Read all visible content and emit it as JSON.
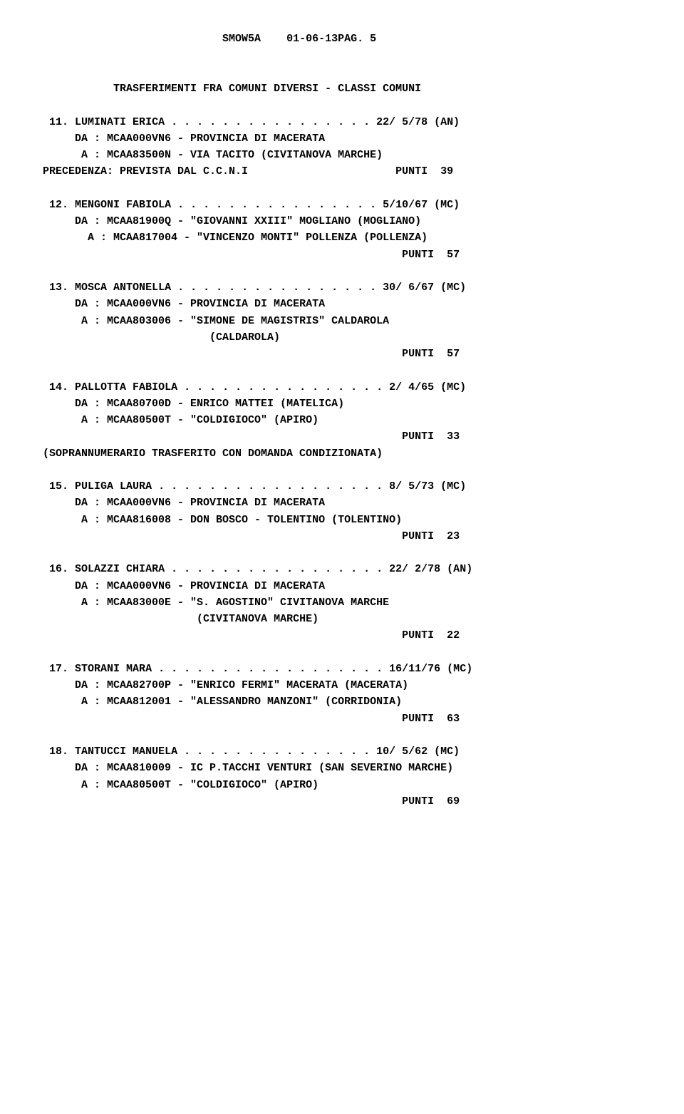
{
  "header": {
    "code": "SMOW5A",
    "date_page": "01-06-13PAG. 5"
  },
  "subtitle": "TRASFERIMENTI FRA COMUNI DIVERSI - CLASSI COMUNI",
  "entries": [
    {
      "num": "11",
      "name": "LUMINATI ERICA",
      "dots": ". . . . . . . . . . . . . . . .",
      "date": "22/ 5/78 (AN)",
      "da": "DA : MCAA000VN6 - PROVINCIA DI MACERATA",
      "a": "A : MCAA83500N - VIA TACITO (CIVITANOVA MARCHE)",
      "prec": "PRECEDENZA: PREVISTA DAL C.C.N.I",
      "punti": "PUNTI  39"
    },
    {
      "num": "12",
      "name": "MENGONI FABIOLA",
      "dots": ". . . . . . . . . . . . . . . .",
      "date": "5/10/67 (MC)",
      "da": "DA : MCAA81900Q - \"GIOVANNI XXIII\" MOGLIANO (MOGLIANO)",
      "a": "A : MCAA817004 - \"VINCENZO MONTI\" POLLENZA (POLLENZA)",
      "punti": "PUNTI  57"
    },
    {
      "num": "13",
      "name": "MOSCA ANTONELLA",
      "dots": ". . . . . . . . . . . . . . . .",
      "date": "30/ 6/67 (MC)",
      "da": "DA : MCAA000VN6 - PROVINCIA DI MACERATA",
      "a": "A : MCAA803006 - \"SIMONE DE MAGISTRIS\" CALDAROLA",
      "a2": "(CALDAROLA)",
      "punti": "PUNTI  57"
    },
    {
      "num": "14",
      "name": "PALLOTTA FABIOLA",
      "dots": ". . . . . . . . . . . . . . . .",
      "date": "2/ 4/65 (MC)",
      "da": "DA : MCAA80700D - ENRICO MATTEI (MATELICA)",
      "a": "A : MCAA80500T - \"COLDIGIOCO\" (APIRO)",
      "punti": "PUNTI  33",
      "note": "(SOPRANNUMERARIO TRASFERITO CON DOMANDA CONDIZIONATA)"
    },
    {
      "num": "15",
      "name": "PULIGA LAURA",
      "dots": ". . . . . . . . . . . . . . . . . .",
      "date": "8/ 5/73 (MC)",
      "da": "DA : MCAA000VN6 - PROVINCIA DI MACERATA",
      "a": "A : MCAA816008 - DON BOSCO - TOLENTINO (TOLENTINO)",
      "punti": "PUNTI  23"
    },
    {
      "num": "16",
      "name": "SOLAZZI CHIARA",
      "dots": ". . . . . . . . . . . . . . . . .",
      "date": "22/ 2/78 (AN)",
      "da": "DA : MCAA000VN6 - PROVINCIA DI MACERATA",
      "a": "A : MCAA83000E - \"S. AGOSTINO\" CIVITANOVA MARCHE",
      "a2": "(CIVITANOVA MARCHE)",
      "punti": "PUNTI  22"
    },
    {
      "num": "17",
      "name": "STORANI MARA",
      "dots": ". . . . . . . . . . . . . . . . . .",
      "date": "16/11/76 (MC)",
      "da": "DA : MCAA82700P - \"ENRICO FERMI\" MACERATA (MACERATA)",
      "a": "A : MCAA812001 - \"ALESSANDRO MANZONI\" (CORRIDONIA)",
      "punti": "PUNTI  63"
    },
    {
      "num": "18",
      "name": "TANTUCCI MANUELA",
      "dots": ". . . . . . . . . . . . . . .",
      "date": "10/ 5/62 (MC)",
      "da": "DA : MCAA810009 - IC P.TACCHI VENTURI (SAN SEVERINO MARCHE)",
      "a": "A : MCAA80500T - \"COLDIGIOCO\" (APIRO)",
      "punti": "PUNTI  69"
    }
  ]
}
